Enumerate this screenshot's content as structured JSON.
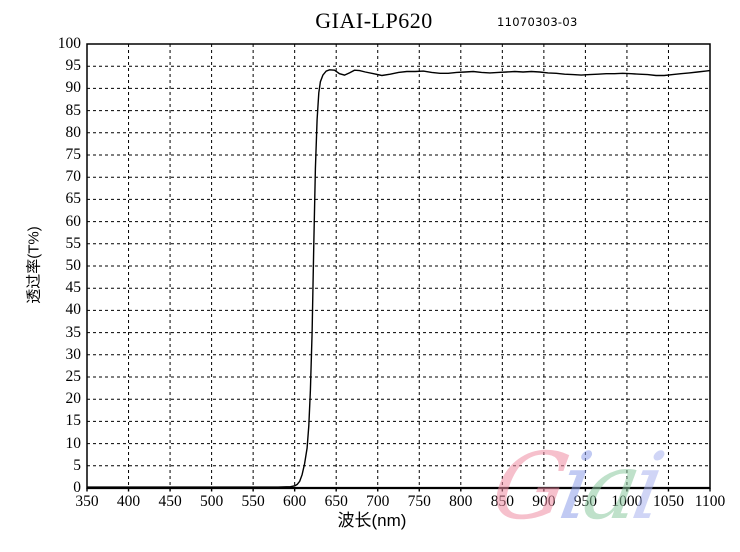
{
  "header": {
    "title": "GIAI-LP620",
    "doc_number": "11070303-03"
  },
  "chart_data": {
    "type": "line",
    "title": "GIAI-LP620",
    "xlabel": "波长(nm)",
    "ylabel": "透过率(T%)",
    "xlim": [
      350,
      1100
    ],
    "ylim": [
      0,
      100
    ],
    "x_ticks": [
      350,
      400,
      450,
      500,
      550,
      600,
      650,
      700,
      750,
      800,
      850,
      900,
      950,
      1000,
      1050,
      1100
    ],
    "y_ticks": [
      0,
      5,
      10,
      15,
      20,
      25,
      30,
      35,
      40,
      45,
      50,
      55,
      60,
      65,
      70,
      75,
      80,
      85,
      90,
      95,
      100
    ],
    "grid": "dashed",
    "legend_position": "none",
    "line_color": "#000000",
    "series": [
      {
        "name": "transmittance",
        "points": [
          [
            350,
            0.2
          ],
          [
            400,
            0.2
          ],
          [
            450,
            0.2
          ],
          [
            500,
            0.2
          ],
          [
            550,
            0.2
          ],
          [
            580,
            0.2
          ],
          [
            595,
            0.3
          ],
          [
            600,
            0.5
          ],
          [
            603,
            0.8
          ],
          [
            606,
            1.5
          ],
          [
            609,
            3
          ],
          [
            612,
            5.5
          ],
          [
            615,
            9
          ],
          [
            617,
            14
          ],
          [
            619,
            22
          ],
          [
            621,
            35
          ],
          [
            623,
            55
          ],
          [
            625,
            72
          ],
          [
            627,
            83
          ],
          [
            629,
            89
          ],
          [
            631,
            91.5
          ],
          [
            634,
            93
          ],
          [
            638,
            93.9
          ],
          [
            642,
            94.2
          ],
          [
            648,
            94.1
          ],
          [
            654,
            93.3
          ],
          [
            660,
            93.0
          ],
          [
            666,
            93.5
          ],
          [
            672,
            94.1
          ],
          [
            678,
            94.0
          ],
          [
            685,
            93.7
          ],
          [
            695,
            93.3
          ],
          [
            705,
            92.9
          ],
          [
            715,
            93.2
          ],
          [
            725,
            93.6
          ],
          [
            735,
            93.8
          ],
          [
            745,
            93.8
          ],
          [
            755,
            93.9
          ],
          [
            765,
            93.6
          ],
          [
            775,
            93.4
          ],
          [
            785,
            93.4
          ],
          [
            795,
            93.6
          ],
          [
            805,
            93.7
          ],
          [
            815,
            93.8
          ],
          [
            825,
            93.6
          ],
          [
            835,
            93.5
          ],
          [
            845,
            93.6
          ],
          [
            855,
            93.7
          ],
          [
            865,
            93.8
          ],
          [
            875,
            93.7
          ],
          [
            885,
            93.8
          ],
          [
            895,
            93.7
          ],
          [
            905,
            93.5
          ],
          [
            915,
            93.4
          ],
          [
            925,
            93.2
          ],
          [
            935,
            93.1
          ],
          [
            945,
            93.0
          ],
          [
            955,
            93.1
          ],
          [
            965,
            93.2
          ],
          [
            975,
            93.3
          ],
          [
            985,
            93.3
          ],
          [
            995,
            93.4
          ],
          [
            1005,
            93.3
          ],
          [
            1015,
            93.2
          ],
          [
            1025,
            93.1
          ],
          [
            1035,
            92.9
          ],
          [
            1045,
            92.9
          ],
          [
            1055,
            93.1
          ],
          [
            1065,
            93.3
          ],
          [
            1075,
            93.5
          ],
          [
            1085,
            93.7
          ],
          [
            1095,
            93.9
          ],
          [
            1100,
            94.0
          ]
        ]
      }
    ]
  },
  "watermark": {
    "text": "Giai",
    "letters": [
      {
        "char": "G",
        "color": "#ef8da4"
      },
      {
        "char": "i",
        "color": "#8fa0ea"
      },
      {
        "char": "a",
        "color": "#8cc9a0"
      },
      {
        "char": "i",
        "color": "#aab4ef"
      }
    ]
  },
  "colors": {
    "background": "#ffffff",
    "axis": "#000000",
    "grid": "#000000",
    "text": "#000000"
  }
}
